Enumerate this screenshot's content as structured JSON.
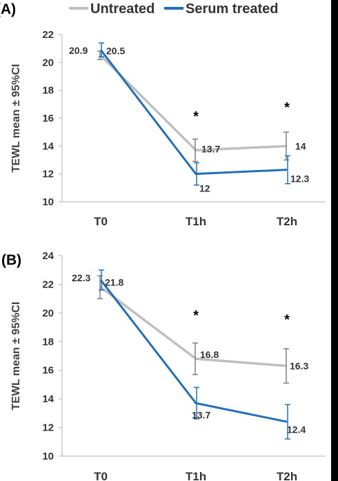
{
  "legend": {
    "items": [
      {
        "name": "Untreated",
        "color": "#bfbfbf"
      },
      {
        "name": "Serum treated",
        "color": "#1f6fbf"
      }
    ]
  },
  "chart_data": [
    {
      "type": "line",
      "panel": "(A)",
      "categories": [
        "T0",
        "T1h",
        "T2h"
      ],
      "ylabel": "TEWL mean ± 95%CI",
      "ylim": [
        10,
        22
      ],
      "yticks": [
        10,
        12,
        14,
        16,
        18,
        20,
        22
      ],
      "series": [
        {
          "name": "Untreated",
          "color": "#bfbfbf",
          "values": [
            20.5,
            13.7,
            14.0
          ],
          "ci_low": [
            20.2,
            12.9,
            13.0
          ],
          "ci_high": [
            20.8,
            14.5,
            15.0
          ],
          "labels": [
            "20.5",
            "13.7",
            "14"
          ]
        },
        {
          "name": "Serum treated",
          "color": "#1f6fbf",
          "values": [
            20.9,
            12.0,
            12.3
          ],
          "ci_low": [
            20.4,
            11.2,
            11.3
          ],
          "ci_high": [
            21.4,
            12.8,
            13.3
          ],
          "labels": [
            "20.9",
            "12",
            "12.3"
          ]
        }
      ],
      "significance": [
        "",
        "*",
        "*"
      ]
    },
    {
      "type": "line",
      "panel": "(B)",
      "categories": [
        "T0",
        "T1h",
        "T2h"
      ],
      "ylabel": "TEWL mean ± 95%CI",
      "ylim": [
        10,
        24
      ],
      "yticks": [
        10,
        12,
        14,
        16,
        18,
        20,
        22,
        24
      ],
      "series": [
        {
          "name": "Untreated",
          "color": "#bfbfbf",
          "values": [
            21.8,
            16.8,
            16.3
          ],
          "ci_low": [
            21.0,
            15.7,
            15.1
          ],
          "ci_high": [
            22.6,
            17.9,
            17.5
          ],
          "labels": [
            "21.8",
            "16.8",
            "16.3"
          ]
        },
        {
          "name": "Serum treated",
          "color": "#1f6fbf",
          "values": [
            22.3,
            13.7,
            12.4
          ],
          "ci_low": [
            21.6,
            12.6,
            11.2
          ],
          "ci_high": [
            23.0,
            14.8,
            13.6
          ],
          "labels": [
            "22.3",
            "13.7",
            "12.4"
          ]
        }
      ],
      "significance": [
        "",
        "*",
        "*"
      ]
    }
  ]
}
